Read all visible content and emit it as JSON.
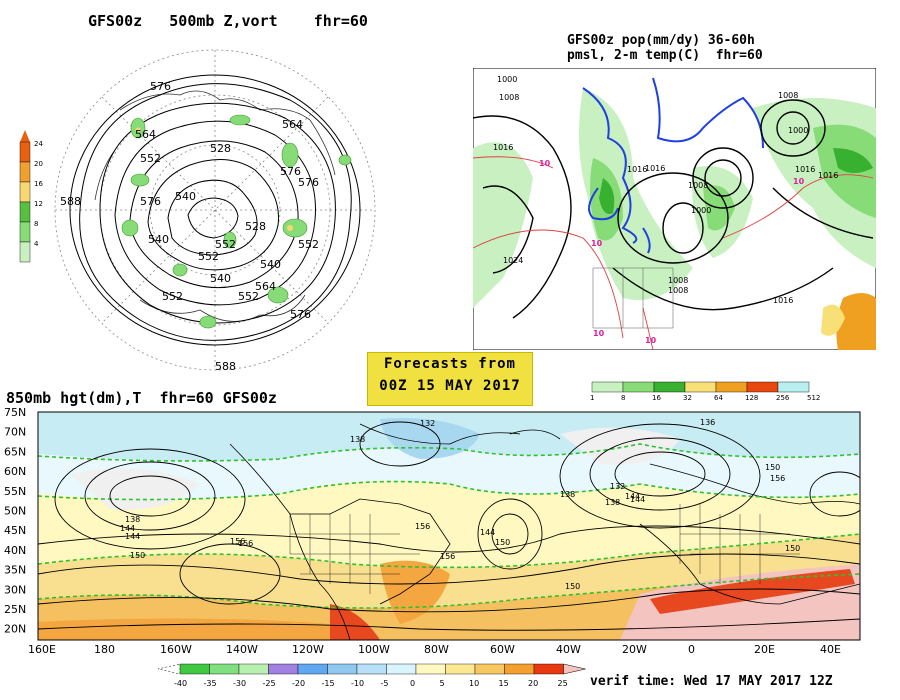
{
  "panel_500mb": {
    "title": "GFS00z   500mb Z,vort    fhr=60",
    "contour_labels": [
      "576",
      "564",
      "552",
      "540",
      "552",
      "540",
      "552",
      "528",
      "576",
      "576",
      "564",
      "552",
      "540",
      "528",
      "552",
      "564",
      "576",
      "540",
      "552",
      "576",
      "588",
      "588"
    ],
    "colorbar_ticks": [
      "24",
      "20",
      "16",
      "12",
      "8",
      "4"
    ],
    "colorbar_colors": [
      "#e86010",
      "#f0a030",
      "#f8d870",
      "#58c040",
      "#88dc78",
      "#c8f0c0"
    ]
  },
  "panel_pmsl": {
    "title_line1": "GFS00z pop(mm/dy) 36-60h",
    "title_line2": "pmsl, 2-m temp(C)  fhr=60",
    "pressure_labels": [
      "1000",
      "1008",
      "1016",
      "1016",
      "1008",
      "1000",
      "1008",
      "1016",
      "1024",
      "1016",
      "1008",
      "1008",
      "1016",
      "1000",
      "1016"
    ],
    "temp_labels": [
      "10",
      "10",
      "10",
      "10",
      "10"
    ],
    "colorbar_ticks": [
      "1",
      "8",
      "16",
      "32",
      "64",
      "128",
      "256",
      "512"
    ],
    "colorbar_colors": [
      "#c8f0c0",
      "#88dc78",
      "#38b030",
      "#f8e078",
      "#f0a020",
      "#e84810",
      "#b8f0f0"
    ]
  },
  "forecast_banner": {
    "line1": "Forecasts from",
    "line2": "00Z 15 MAY 2017"
  },
  "panel_850mb": {
    "title": "850mb hgt(dm),T  fhr=60 GFS00z",
    "lat_labels": [
      "75N",
      "70N",
      "65N",
      "60N",
      "55N",
      "50N",
      "45N",
      "40N",
      "35N",
      "30N",
      "25N",
      "20N"
    ],
    "lon_labels": [
      "160E",
      "180",
      "160W",
      "140W",
      "120W",
      "100W",
      "80W",
      "60W",
      "40W",
      "20W",
      "0",
      "20E",
      "40E"
    ],
    "height_labels": [
      "138",
      "144",
      "132",
      "138",
      "144",
      "150",
      "156",
      "138",
      "156",
      "150",
      "138",
      "144",
      "150",
      "136",
      "132",
      "144",
      "150",
      "156",
      "156",
      "150",
      "156",
      "144"
    ],
    "temp_colorbar_ticks": [
      "-40",
      "-35",
      "-30",
      "-25",
      "-20",
      "-15",
      "-10",
      "-5",
      "0",
      "5",
      "10",
      "15",
      "20",
      "25"
    ],
    "temp_colorbar_colors": [
      "#40c840",
      "#80e080",
      "#b8f0b0",
      "#a080e0",
      "#60a8f0",
      "#90c8f0",
      "#b8e0f8",
      "#d8f4fc",
      "#fff8c0",
      "#fce890",
      "#f8c860",
      "#f4a030",
      "#e83810"
    ],
    "verif_time": "verif time: Wed 17 MAY 2017 12Z"
  },
  "colors": {
    "land_cold": "#c8ecf4",
    "warm_yellow": "#f8e090",
    "warm_orange": "#f4a640",
    "hot_red": "#e84820",
    "pink": "#f4c4c0",
    "contour_green": "#30c030",
    "precip_blue": "#2040e0",
    "temp_red": "#e04040"
  }
}
